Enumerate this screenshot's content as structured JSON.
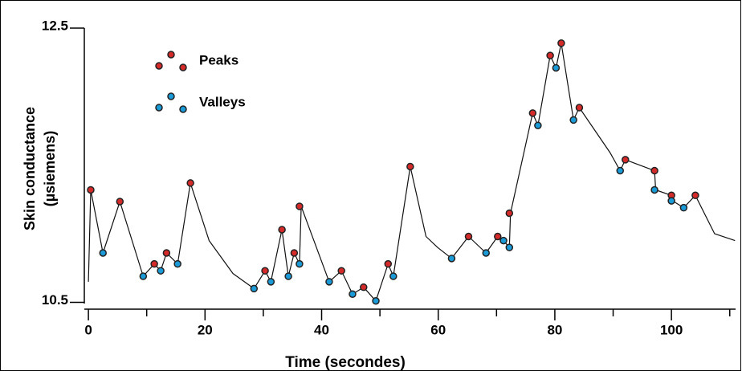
{
  "chart_data": {
    "type": "line",
    "xlabel": "Time (secondes)",
    "ylabel": [
      "Skin conductance",
      "(µsiemens)"
    ],
    "xlim": [
      -0.7,
      111
    ],
    "ylim": [
      10.45,
      12.5
    ],
    "xticks": [
      0,
      20,
      40,
      60,
      80,
      100
    ],
    "xminorticks": [
      10,
      30,
      50,
      70,
      90,
      110
    ],
    "yticks": [
      10.5,
      12.5
    ],
    "legend": "upper left",
    "line": {
      "color": "#111111",
      "x": [
        0,
        0.4,
        2.5,
        5.4,
        9.4,
        11.3,
        12.4,
        13.4,
        15.3,
        17.5,
        20.7,
        24.8,
        28.4,
        30.3,
        31.3,
        33.2,
        34.3,
        35.3,
        36.2,
        36.5,
        41.3,
        43.4,
        45.3,
        47.2,
        49.3,
        51.4,
        52.3,
        55.2,
        57.9,
        59.9,
        62.3,
        65.2,
        68.2,
        70.2,
        71.2,
        72.2,
        72.4,
        76.2,
        77.1,
        79.2,
        80.2,
        81.1,
        83.2,
        84.2,
        89.5,
        91.2,
        92.1,
        97.1,
        97.3,
        100,
        100.2,
        102.1,
        104.1,
        107.4,
        110.9
      ],
      "values": [
        10.65,
        11.32,
        10.86,
        11.235,
        10.69,
        10.78,
        10.73,
        10.86,
        10.78,
        11.37,
        10.95,
        10.71,
        10.6,
        10.73,
        10.65,
        11.03,
        10.69,
        10.86,
        10.78,
        11.2,
        10.65,
        10.73,
        10.56,
        10.61,
        10.51,
        10.78,
        10.69,
        11.49,
        10.98,
        10.9,
        10.82,
        10.98,
        10.86,
        10.98,
        10.95,
        10.9,
        11.15,
        11.88,
        11.79,
        12.3,
        12.21,
        12.39,
        11.83,
        11.92,
        11.59,
        11.46,
        11.54,
        11.46,
        11.32,
        11.28,
        11.24,
        11.19,
        11.28,
        11.0,
        10.95
      ]
    },
    "series": [
      {
        "name": "Peaks",
        "color": "#d42a2a",
        "x": [
          0.4,
          5.4,
          11.3,
          13.4,
          17.5,
          30.3,
          33.2,
          35.3,
          36.2,
          43.4,
          47.2,
          51.4,
          55.2,
          65.2,
          70.2,
          72.2,
          76.2,
          79.2,
          81.1,
          84.2,
          92.1,
          97.1,
          100,
          104.1
        ],
        "values": [
          11.32,
          11.235,
          10.78,
          10.86,
          11.37,
          10.73,
          11.03,
          10.86,
          11.2,
          10.73,
          10.61,
          10.78,
          11.49,
          10.98,
          10.98,
          11.15,
          11.88,
          12.3,
          12.39,
          11.92,
          11.54,
          11.46,
          11.28,
          11.28
        ]
      },
      {
        "name": "Valleys",
        "color": "#1a9ad6",
        "x": [
          2.5,
          9.4,
          12.4,
          15.3,
          28.4,
          31.3,
          34.3,
          36.2,
          41.3,
          45.3,
          49.3,
          52.3,
          62.3,
          68.2,
          71.2,
          72.2,
          77.1,
          80.2,
          83.2,
          91.2,
          97.1,
          100,
          102.1
        ],
        "values": [
          10.86,
          10.69,
          10.73,
          10.78,
          10.6,
          10.65,
          10.69,
          10.78,
          10.65,
          10.56,
          10.51,
          10.69,
          10.82,
          10.86,
          10.95,
          10.9,
          11.79,
          12.21,
          11.83,
          11.46,
          11.32,
          11.24,
          11.19
        ]
      }
    ]
  }
}
